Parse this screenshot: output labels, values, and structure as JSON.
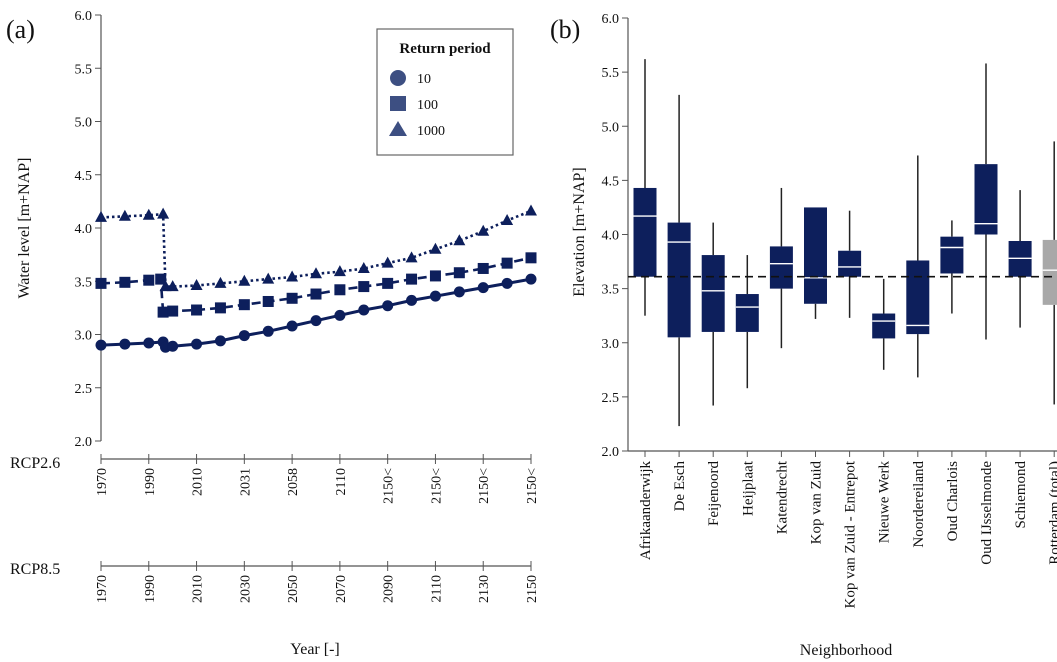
{
  "panels": {
    "a_label": "(a)",
    "b_label": "(b)"
  },
  "colors": {
    "navy": "#0d1f5c",
    "box_gray": "#a8a8a8",
    "legend_marker": "#3d4f82",
    "whisker": "#222222"
  },
  "chart_data": [
    {
      "type": "line",
      "panel": "(a)",
      "xlabel": "Year [-]",
      "ylabel": "Water level [m+NAP]",
      "ylim": [
        2.0,
        6.0
      ],
      "yticks": [
        "2.0",
        "2.5",
        "3.0",
        "3.5",
        "4.0",
        "4.5",
        "5.0",
        "5.5",
        "6.0"
      ],
      "x_axes": [
        {
          "name": "RCP2.6",
          "ticks": [
            "1970",
            "1990",
            "2010",
            "2031",
            "2058",
            "2110",
            "2150<",
            "2150<",
            "2150<",
            "2150<"
          ]
        },
        {
          "name": "RCP8.5",
          "ticks": [
            "1970",
            "1990",
            "2010",
            "2030",
            "2050",
            "2070",
            "2090",
            "2110",
            "2130",
            "2150"
          ]
        }
      ],
      "x_tick_years": [
        1970,
        1990,
        2010,
        2030,
        2050,
        2070,
        2090,
        2110,
        2130,
        2150
      ],
      "legend": {
        "title": "Return period",
        "position": "top-right"
      },
      "series": [
        {
          "name": "10",
          "marker": "circle",
          "line": "solid",
          "x": [
            1970,
            1980,
            1990,
            1996,
            1997,
            2000,
            2010,
            2020,
            2030,
            2040,
            2050,
            2060,
            2070,
            2080,
            2090,
            2100,
            2110,
            2120,
            2130,
            2140,
            2150
          ],
          "y": [
            2.9,
            2.91,
            2.92,
            2.93,
            2.88,
            2.89,
            2.91,
            2.94,
            2.99,
            3.03,
            3.08,
            3.13,
            3.18,
            3.23,
            3.27,
            3.32,
            3.36,
            3.4,
            3.44,
            3.48,
            3.52
          ]
        },
        {
          "name": "100",
          "marker": "square",
          "line": "dashed",
          "x": [
            1970,
            1980,
            1990,
            1995,
            1996,
            2000,
            2010,
            2020,
            2030,
            2040,
            2050,
            2060,
            2070,
            2080,
            2090,
            2100,
            2110,
            2120,
            2130,
            2140,
            2150
          ],
          "y": [
            3.48,
            3.49,
            3.51,
            3.52,
            3.21,
            3.22,
            3.23,
            3.25,
            3.28,
            3.31,
            3.34,
            3.38,
            3.42,
            3.45,
            3.48,
            3.52,
            3.55,
            3.58,
            3.62,
            3.67,
            3.72
          ]
        },
        {
          "name": "1000",
          "marker": "triangle",
          "line": "dotted",
          "x": [
            1970,
            1980,
            1990,
            1996,
            1997,
            2000,
            2010,
            2020,
            2030,
            2040,
            2050,
            2060,
            2070,
            2080,
            2090,
            2100,
            2110,
            2120,
            2130,
            2140,
            2150
          ],
          "y": [
            4.1,
            4.11,
            4.12,
            4.13,
            3.45,
            3.45,
            3.46,
            3.48,
            3.5,
            3.52,
            3.54,
            3.57,
            3.59,
            3.62,
            3.67,
            3.72,
            3.8,
            3.88,
            3.97,
            4.07,
            4.16
          ]
        }
      ]
    },
    {
      "type": "box",
      "panel": "(b)",
      "xlabel": "Neighborhood",
      "ylabel": "Elevation [m+NAP]",
      "ylim": [
        2.0,
        6.0
      ],
      "yticks": [
        "2.0",
        "2.5",
        "3.0",
        "3.5",
        "4.0",
        "4.5",
        "5.0",
        "5.5",
        "6.0"
      ],
      "reference_line": 3.61,
      "categories": [
        "Afrikaanderwijk",
        "De Esch",
        "Feijenoord",
        "Heijplaat",
        "Katendrecht",
        "Kop van Zuid",
        "Kop van Zuid - Entrepot",
        "Nieuwe Werk",
        "Noordereiland",
        "Oud Charlois",
        "Oud IJsselmonde",
        "Schiemond",
        "Rotterdam (total)"
      ],
      "boxes": [
        {
          "min": 3.25,
          "q1": 3.61,
          "median": 4.17,
          "q3": 4.43,
          "max": 5.62
        },
        {
          "min": 2.23,
          "q1": 3.05,
          "median": 3.93,
          "q3": 4.11,
          "max": 5.29
        },
        {
          "min": 2.42,
          "q1": 3.1,
          "median": 3.48,
          "q3": 3.81,
          "max": 4.11
        },
        {
          "min": 2.58,
          "q1": 3.1,
          "median": 3.33,
          "q3": 3.45,
          "max": 3.81
        },
        {
          "min": 2.95,
          "q1": 3.5,
          "median": 3.73,
          "q3": 3.89,
          "max": 4.43
        },
        {
          "min": 3.22,
          "q1": 3.36,
          "median": 3.6,
          "q3": 4.25,
          "max": 4.25
        },
        {
          "min": 3.23,
          "q1": 3.61,
          "median": 3.7,
          "q3": 3.85,
          "max": 4.22
        },
        {
          "min": 2.75,
          "q1": 3.04,
          "median": 3.2,
          "q3": 3.27,
          "max": 3.59
        },
        {
          "min": 2.68,
          "q1": 3.08,
          "median": 3.16,
          "q3": 3.76,
          "max": 4.73
        },
        {
          "min": 3.27,
          "q1": 3.64,
          "median": 3.88,
          "q3": 3.98,
          "max": 4.13
        },
        {
          "min": 3.03,
          "q1": 4.0,
          "median": 4.1,
          "q3": 4.65,
          "max": 5.58
        },
        {
          "min": 3.14,
          "q1": 3.61,
          "median": 3.78,
          "q3": 3.94,
          "max": 4.41
        },
        {
          "min": 2.43,
          "q1": 3.35,
          "median": 3.67,
          "q3": 3.95,
          "max": 4.86
        }
      ]
    }
  ]
}
